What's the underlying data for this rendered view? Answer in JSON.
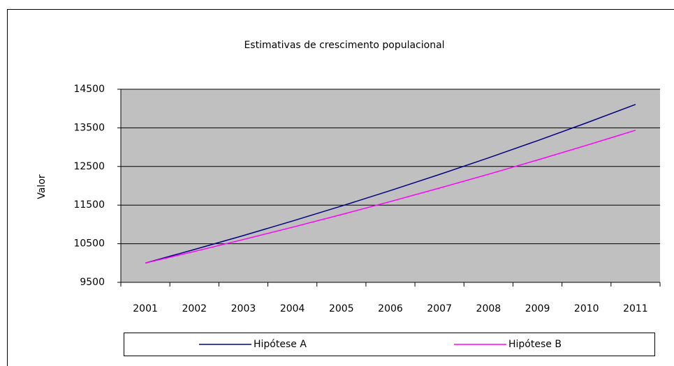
{
  "chart_data": {
    "type": "line",
    "title": "Estimativas de crescimento populacional",
    "y_label": "Valor",
    "categories": [
      "2001",
      "2002",
      "2003",
      "2004",
      "2005",
      "2006",
      "2007",
      "2008",
      "2009",
      "2010",
      "2011"
    ],
    "series": [
      {
        "name": "Hipótese A",
        "color": "#000080",
        "values": [
          10000,
          10350,
          10712,
          11087,
          11475,
          11877,
          12293,
          12723,
          13168,
          13629,
          14106
        ]
      },
      {
        "name": "Hipótese B",
        "color": "#ff00ff",
        "values": [
          10000,
          10300,
          10609,
          10927,
          11255,
          11593,
          11941,
          12299,
          12668,
          13048,
          13439
        ]
      }
    ],
    "ylim": [
      9500,
      14500
    ],
    "yticks": [
      9500,
      10500,
      11500,
      12500,
      13500,
      14500
    ],
    "grid": true,
    "legend": "bottom"
  }
}
